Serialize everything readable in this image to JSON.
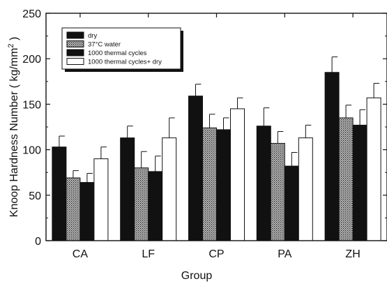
{
  "chart_data": {
    "type": "bar",
    "xlabel": "Group",
    "ylabel_prefix": "Knoop Hardness Number ( kg/mm",
    "ylabel_sup": "2",
    "ylabel_suffix": " )",
    "ylim": [
      0,
      250
    ],
    "yticks": [
      "0",
      "50",
      "100",
      "150",
      "200",
      "250"
    ],
    "categories": [
      "CA",
      "LF",
      "CP",
      "PA",
      "ZH"
    ],
    "legend_position": "top-left",
    "series": [
      {
        "name": "dry",
        "color": "#111111",
        "pattern": "solid",
        "values": [
          103,
          113,
          159,
          126,
          185
        ],
        "errors": [
          12,
          13,
          13,
          20,
          17
        ]
      },
      {
        "name": "37°C water",
        "color": "#8a8a8a",
        "pattern": "dots",
        "values": [
          69,
          80,
          124,
          107,
          135
        ],
        "errors": [
          8,
          18,
          15,
          13,
          14
        ]
      },
      {
        "name": "1000 thermal cycles",
        "color": "#111111",
        "pattern": "solid",
        "values": [
          64,
          76,
          122,
          82,
          127
        ],
        "errors": [
          10,
          17,
          13,
          15,
          17
        ]
      },
      {
        "name": "1000 thermal cycles+ dry",
        "color": "#ffffff",
        "pattern": "open",
        "values": [
          90,
          113,
          145,
          113,
          157
        ],
        "errors": [
          13,
          22,
          12,
          14,
          16
        ]
      }
    ]
  }
}
